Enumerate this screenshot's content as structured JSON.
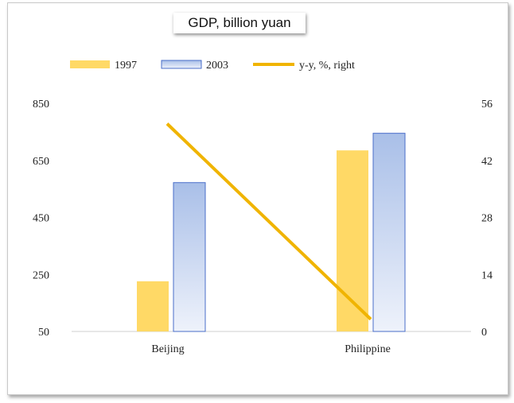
{
  "chart_data": {
    "type": "bar",
    "title": "GDP, billion yuan",
    "categories": [
      "Beijing",
      "Philippine"
    ],
    "series": [
      {
        "name": "1997",
        "type": "bar",
        "axis": "left",
        "values": [
          226,
          685
        ]
      },
      {
        "name": "2003",
        "type": "bar",
        "axis": "left",
        "values": [
          572,
          745
        ]
      },
      {
        "name": "y-y, %, right",
        "type": "line",
        "axis": "right",
        "values": [
          51,
          3
        ]
      }
    ],
    "y_left": {
      "min": 50,
      "max": 850,
      "ticks": [
        50,
        250,
        450,
        650,
        850
      ]
    },
    "y_right": {
      "min": 0,
      "max": 56,
      "ticks": [
        0,
        14,
        28,
        42,
        56
      ]
    },
    "legend_position": "top",
    "grid": false,
    "colors": {
      "bar_1997": "#ffd966",
      "bar_2003_top": "#a9bfe8",
      "bar_2003_bottom": "#eef2fb",
      "bar_2003_border": "#4a6ec9",
      "line": "#f0b400"
    }
  }
}
